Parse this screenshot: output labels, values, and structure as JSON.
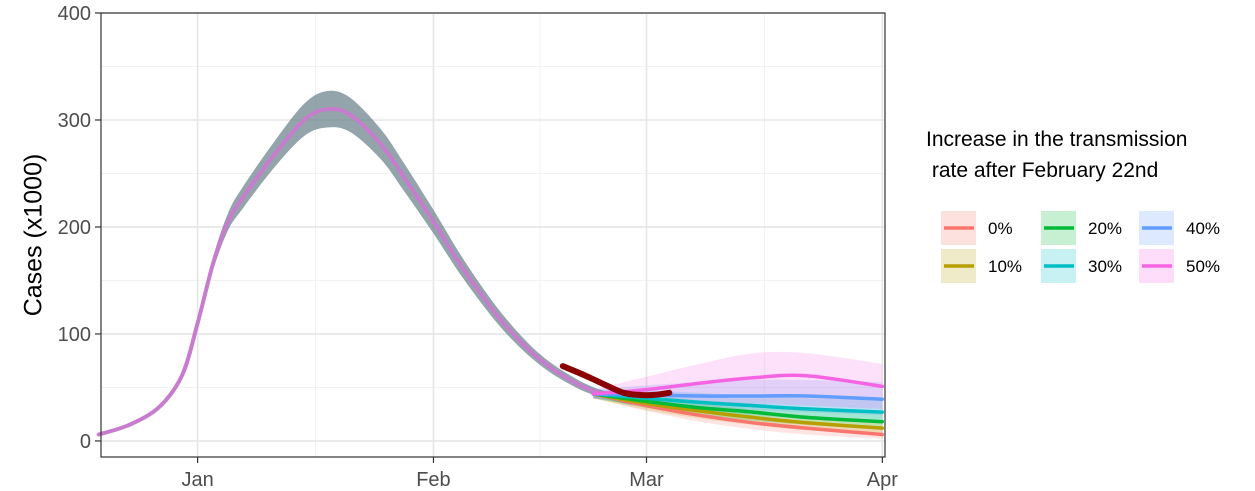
{
  "chart_data": {
    "type": "line",
    "title": "",
    "xlabel": "",
    "ylabel": "Cases (x1000)",
    "ylim": [
      -15,
      400
    ],
    "xlim": [
      "2020-12-20",
      "2021-04-01"
    ],
    "y_ticks": [
      0,
      100,
      200,
      300,
      400
    ],
    "y_tick_labels": [
      "0",
      "100",
      "200",
      "300",
      "400"
    ],
    "x_ticks": [
      "2021-01-01",
      "2021-02-01",
      "2021-03-01",
      "2021-04-01"
    ],
    "x_tick_labels": [
      "Jan",
      "Feb",
      "Mar",
      "Apr"
    ],
    "grid": true,
    "legend": {
      "title_lines": [
        "Increase in the transmission",
        " rate after February 22nd"
      ],
      "position": "right",
      "entries": [
        {
          "label": "0%",
          "color": "#F8766D"
        },
        {
          "label": "10%",
          "color": "#B79F00"
        },
        {
          "label": "20%",
          "color": "#00BA38"
        },
        {
          "label": "30%",
          "color": "#00BFC4"
        },
        {
          "label": "40%",
          "color": "#619CFF"
        },
        {
          "label": "50%",
          "color": "#F564E3"
        }
      ]
    },
    "common_trajectory": {
      "x": [
        "2020-12-19",
        "2020-12-23",
        "2020-12-27",
        "2020-12-30",
        "2021-01-01",
        "2021-01-03",
        "2021-01-05",
        "2021-01-07",
        "2021-01-11",
        "2021-01-15",
        "2021-01-18",
        "2021-01-21",
        "2021-01-25",
        "2021-01-28",
        "2021-02-01",
        "2021-02-05",
        "2021-02-10",
        "2021-02-15",
        "2021-02-20",
        "2021-02-24",
        "2021-02-27"
      ],
      "y": [
        6,
        15,
        32,
        62,
        110,
        165,
        205,
        228,
        267,
        300,
        310,
        305,
        278,
        248,
        205,
        160,
        112,
        76,
        53,
        42,
        36
      ],
      "band_halfwidth": [
        0,
        0,
        0,
        0,
        3,
        6,
        8,
        10,
        12,
        15,
        17,
        16,
        14,
        13,
        11,
        9,
        7,
        5,
        4,
        3,
        2
      ]
    },
    "scenarios_x": [
      "2021-02-22",
      "2021-03-01",
      "2021-03-08",
      "2021-03-15",
      "2021-03-22",
      "2021-04-01"
    ],
    "series": [
      {
        "name": "0%",
        "color": "#F8766D",
        "values": [
          44,
          33,
          24,
          17,
          12,
          6
        ],
        "lower": [
          40,
          28,
          18,
          11,
          6,
          2
        ],
        "upper": [
          48,
          38,
          30,
          23,
          18,
          12
        ]
      },
      {
        "name": "10%",
        "color": "#B79F00",
        "values": [
          44,
          35,
          28,
          22,
          17,
          12
        ],
        "lower": [
          40,
          29,
          21,
          15,
          10,
          6
        ],
        "upper": [
          48,
          41,
          35,
          29,
          24,
          19
        ]
      },
      {
        "name": "20%",
        "color": "#00BA38",
        "values": [
          44,
          37,
          31,
          27,
          22,
          18
        ],
        "lower": [
          40,
          31,
          24,
          19,
          15,
          11
        ],
        "upper": [
          48,
          43,
          38,
          35,
          30,
          26
        ]
      },
      {
        "name": "30%",
        "color": "#00BFC4",
        "values": [
          44,
          40,
          36,
          33,
          30,
          27
        ],
        "lower": [
          40,
          33,
          28,
          24,
          21,
          17
        ],
        "upper": [
          48,
          47,
          45,
          42,
          40,
          38
        ]
      },
      {
        "name": "40%",
        "color": "#619CFF",
        "values": [
          44,
          43,
          42,
          42,
          42,
          39
        ],
        "lower": [
          40,
          35,
          31,
          29,
          27,
          24
        ],
        "upper": [
          48,
          52,
          55,
          57,
          57,
          55
        ]
      },
      {
        "name": "50%",
        "color": "#F564E3",
        "values": [
          44,
          48,
          54,
          59,
          61,
          51
        ],
        "lower": [
          40,
          37,
          36,
          35,
          33,
          30
        ],
        "upper": [
          48,
          60,
          72,
          82,
          82,
          72
        ]
      }
    ],
    "observed": {
      "color": "#8B0000",
      "x": [
        "2021-02-18",
        "2021-02-21",
        "2021-02-24",
        "2021-02-26",
        "2021-02-28",
        "2021-03-02",
        "2021-03-04"
      ],
      "y": [
        70,
        61,
        51,
        45,
        43,
        43,
        45
      ]
    }
  }
}
